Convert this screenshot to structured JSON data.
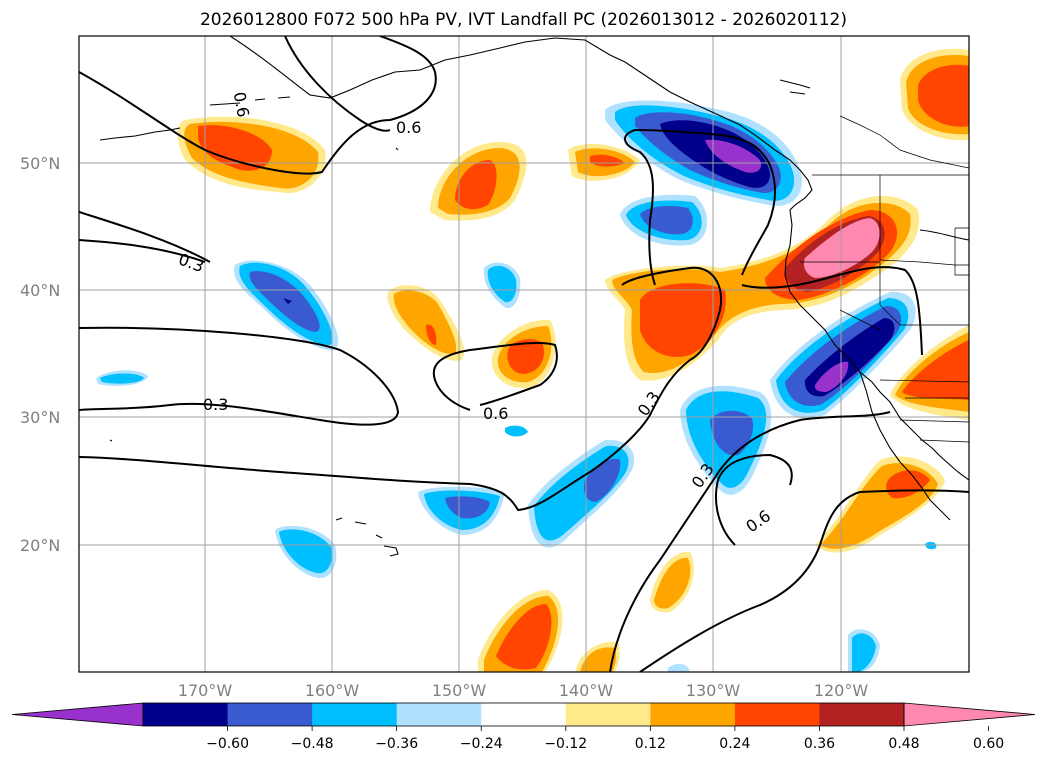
{
  "title": "2026012800 F072 500 hPa PV, IVT Landfall PC (2026013012 - 2026020112)",
  "map": {
    "lon_labels": [
      "170°W",
      "160°W",
      "150°W",
      "140°W",
      "130°W",
      "120°W"
    ],
    "lat_labels": [
      "50°N",
      "40°N",
      "30°N",
      "20°N"
    ],
    "contour_labels": [
      "0.6",
      "0.6",
      "0.3",
      "0.3",
      "0.6",
      "0.3",
      "0.3",
      "0.6"
    ]
  },
  "colorbar": {
    "ticks": [
      "−0.60",
      "−0.48",
      "−0.36",
      "−0.24",
      "−0.12",
      "0.12",
      "0.24",
      "0.36",
      "0.48",
      "0.60"
    ],
    "colors": [
      "#9932cc",
      "#00008b",
      "#3a5bd0",
      "#00bfff",
      "#b0e2ff",
      "#ffffff",
      "#ffe98a",
      "#ffa500",
      "#ff4500",
      "#b22222",
      "#ff88b0"
    ]
  }
}
